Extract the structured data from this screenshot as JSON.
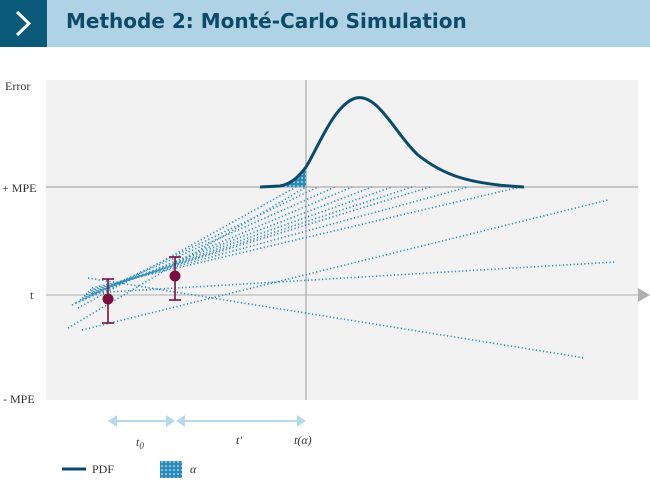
{
  "header": {
    "title": "Methode 2: Monté-Carlo Simulation",
    "icon": "chevron-right-icon",
    "bar_color": "#afd3e4",
    "accent_color": "#0b5978"
  },
  "axes": {
    "y_labels": {
      "top": "Error",
      "plus_mpe": "+ MPE",
      "t": "t",
      "minus_mpe": "- MPE"
    }
  },
  "intervals": {
    "t0": "t0",
    "t_prime": "t'",
    "t_alpha": "t(α)"
  },
  "legend": {
    "pdf_label": "PDF",
    "alpha_label": "α"
  },
  "colors": {
    "curve": "#0b4a68",
    "dotted_lines": "#2b8bb8",
    "points": "#7a1040",
    "interval_arrows": "#b5d9ea",
    "plot_background": "#f2f2f2"
  }
}
